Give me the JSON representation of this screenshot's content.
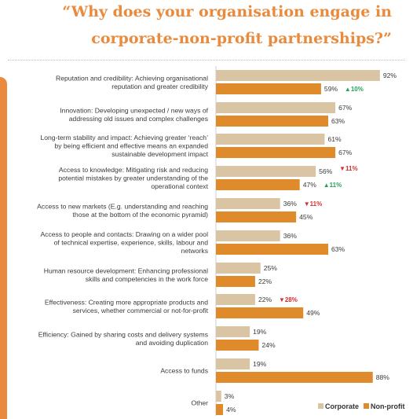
{
  "title": {
    "line1": "“Why does your organisation engage in",
    "line2": "corporate-non-profit partnerships?”"
  },
  "colors": {
    "corporate": "#d9c5a3",
    "nonprofit": "#df8b2c",
    "accent": "#e98a3c",
    "up": "#27a35a",
    "down": "#d32f2f"
  },
  "chart_data": {
    "type": "bar",
    "orientation": "horizontal",
    "xlim": [
      0,
      100
    ],
    "grid": false,
    "legend_position": "bottom-right",
    "series": [
      {
        "name": "Corporate",
        "values": [
          92,
          67,
          61,
          56,
          36,
          36,
          25,
          22,
          19,
          19,
          3
        ]
      },
      {
        "name": "Non-profit",
        "values": [
          59,
          63,
          67,
          47,
          45,
          63,
          22,
          49,
          24,
          88,
          4
        ]
      }
    ],
    "categories": [
      {
        "lines": [
          "Reputation and credibility: Achieving organisational",
          "reputation and greater credibility"
        ]
      },
      {
        "lines": [
          "Innovation: Developing unexpected / new ways of",
          "addressing old issues and complex challenges"
        ]
      },
      {
        "lines": [
          "Long-term stability and impact: Achieving greater ‘reach’",
          "by being efficient and effective means an expanded",
          "sustainable development impact"
        ]
      },
      {
        "lines": [
          "Access to knowledge: Mitigating risk and reducing",
          "potential mistakes by greater understanding of the",
          "operational context"
        ]
      },
      {
        "lines": [
          "Access to new markets (E.g. understanding and reaching",
          "those at the bottom of the economic pyramid)"
        ]
      },
      {
        "lines": [
          "Access to people and contacts: Drawing on a wider pool",
          "of technical expertise, experience, skills, labour and",
          "networks"
        ]
      },
      {
        "lines": [
          "Human resource development: Enhancing professional",
          "skills and competencies in the work force"
        ]
      },
      {
        "lines": [
          "Effectiveness: Creating more appropriate products and",
          "services, whether commercial or not-for-profit"
        ]
      },
      {
        "lines": [
          "Efficiency: Gained by sharing costs and delivery systems",
          "and avoiding duplication"
        ]
      },
      {
        "lines": [
          "Access to funds"
        ]
      },
      {
        "lines": [
          "Other"
        ]
      }
    ],
    "annotations": [
      {
        "category": 0,
        "series": 1,
        "text": "▲10%",
        "direction": "up"
      },
      {
        "category": 3,
        "series": 0,
        "text": "▼11%",
        "direction": "down"
      },
      {
        "category": 3,
        "series": 1,
        "text": "▲11%",
        "direction": "up"
      },
      {
        "category": 4,
        "series": 0,
        "text": "▼11%",
        "direction": "down"
      },
      {
        "category": 7,
        "series": 0,
        "text": "▼28%",
        "direction": "down"
      }
    ],
    "legend": [
      {
        "label": "Corporate",
        "series": 0
      },
      {
        "label": "Non-profit",
        "series": 1
      }
    ]
  }
}
